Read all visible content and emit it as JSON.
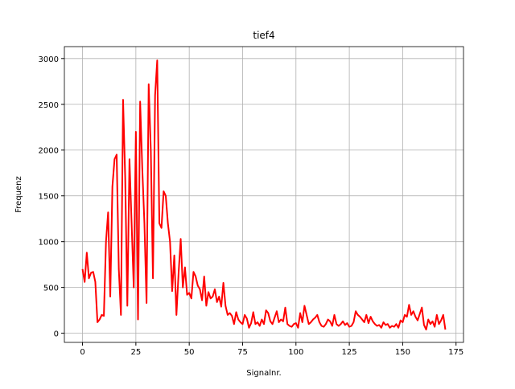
{
  "chart_data": {
    "type": "line",
    "title": "tief4",
    "xlabel": "Signalnr.",
    "ylabel": "Frequenz",
    "x": [
      0,
      1,
      2,
      3,
      4,
      5,
      6,
      7,
      8,
      9,
      10,
      11,
      12,
      13,
      14,
      15,
      16,
      17,
      18,
      19,
      20,
      21,
      22,
      23,
      24,
      25,
      26,
      27,
      28,
      29,
      30,
      31,
      32,
      33,
      34,
      35,
      36,
      37,
      38,
      39,
      40,
      41,
      42,
      43,
      44,
      45,
      46,
      47,
      48,
      49,
      50,
      51,
      52,
      53,
      54,
      55,
      56,
      57,
      58,
      59,
      60,
      61,
      62,
      63,
      64,
      65,
      66,
      67,
      68,
      69,
      70,
      71,
      72,
      73,
      74,
      75,
      76,
      77,
      78,
      79,
      80,
      81,
      82,
      83,
      84,
      85,
      86,
      87,
      88,
      89,
      90,
      91,
      92,
      93,
      94,
      95,
      96,
      97,
      98,
      99,
      100,
      101,
      102,
      103,
      104,
      105,
      106,
      107,
      108,
      109,
      110,
      111,
      112,
      113,
      114,
      115,
      116,
      117,
      118,
      119,
      120,
      121,
      122,
      123,
      124,
      125,
      126,
      127,
      128,
      129,
      130,
      131,
      132,
      133,
      134,
      135,
      136,
      137,
      138,
      139,
      140,
      141,
      142,
      143,
      144,
      145,
      146,
      147,
      148,
      149,
      150,
      151,
      152,
      153,
      154,
      155,
      156,
      157,
      158,
      159,
      160,
      161,
      162,
      163,
      164,
      165,
      166,
      167,
      168,
      169,
      170
    ],
    "series": [
      {
        "name": "tief4",
        "color": "#ff0000",
        "values": [
          700,
          560,
          880,
          600,
          660,
          670,
          560,
          120,
          150,
          200,
          190,
          1000,
          1320,
          400,
          1600,
          1900,
          1950,
          700,
          200,
          2550,
          1700,
          300,
          1900,
          1200,
          500,
          2200,
          150,
          2530,
          1800,
          1200,
          330,
          2720,
          2000,
          600,
          2600,
          2980,
          1200,
          1150,
          1550,
          1500,
          1200,
          1000,
          460,
          850,
          200,
          650,
          1030,
          500,
          720,
          420,
          440,
          380,
          670,
          620,
          520,
          480,
          360,
          620,
          300,
          450,
          380,
          400,
          480,
          340,
          400,
          290,
          550,
          300,
          200,
          220,
          190,
          100,
          230,
          150,
          120,
          100,
          200,
          160,
          60,
          110,
          230,
          100,
          120,
          80,
          150,
          100,
          250,
          220,
          130,
          100,
          170,
          240,
          120,
          150,
          130,
          280,
          100,
          80,
          70,
          100,
          110,
          60,
          220,
          120,
          300,
          200,
          100,
          120,
          150,
          170,
          200,
          120,
          80,
          70,
          100,
          150,
          130,
          80,
          200,
          100,
          80,
          100,
          130,
          90,
          110,
          70,
          80,
          120,
          240,
          200,
          180,
          150,
          120,
          200,
          110,
          180,
          130,
          100,
          80,
          90,
          60,
          120,
          90,
          100,
          60,
          80,
          70,
          100,
          60,
          140,
          120,
          200,
          180,
          310,
          200,
          240,
          180,
          140,
          210,
          280,
          90,
          40,
          150,
          100,
          130,
          70,
          200,
          100,
          140,
          200,
          40
        ]
      }
    ],
    "xlim": [
      -8.5,
      178.5
    ],
    "ylim": [
      -100,
      3130
    ],
    "xticks": [
      0,
      25,
      50,
      75,
      100,
      125,
      150,
      175
    ],
    "yticks": [
      0,
      500,
      1000,
      1500,
      2000,
      2500,
      3000
    ],
    "grid": true
  }
}
